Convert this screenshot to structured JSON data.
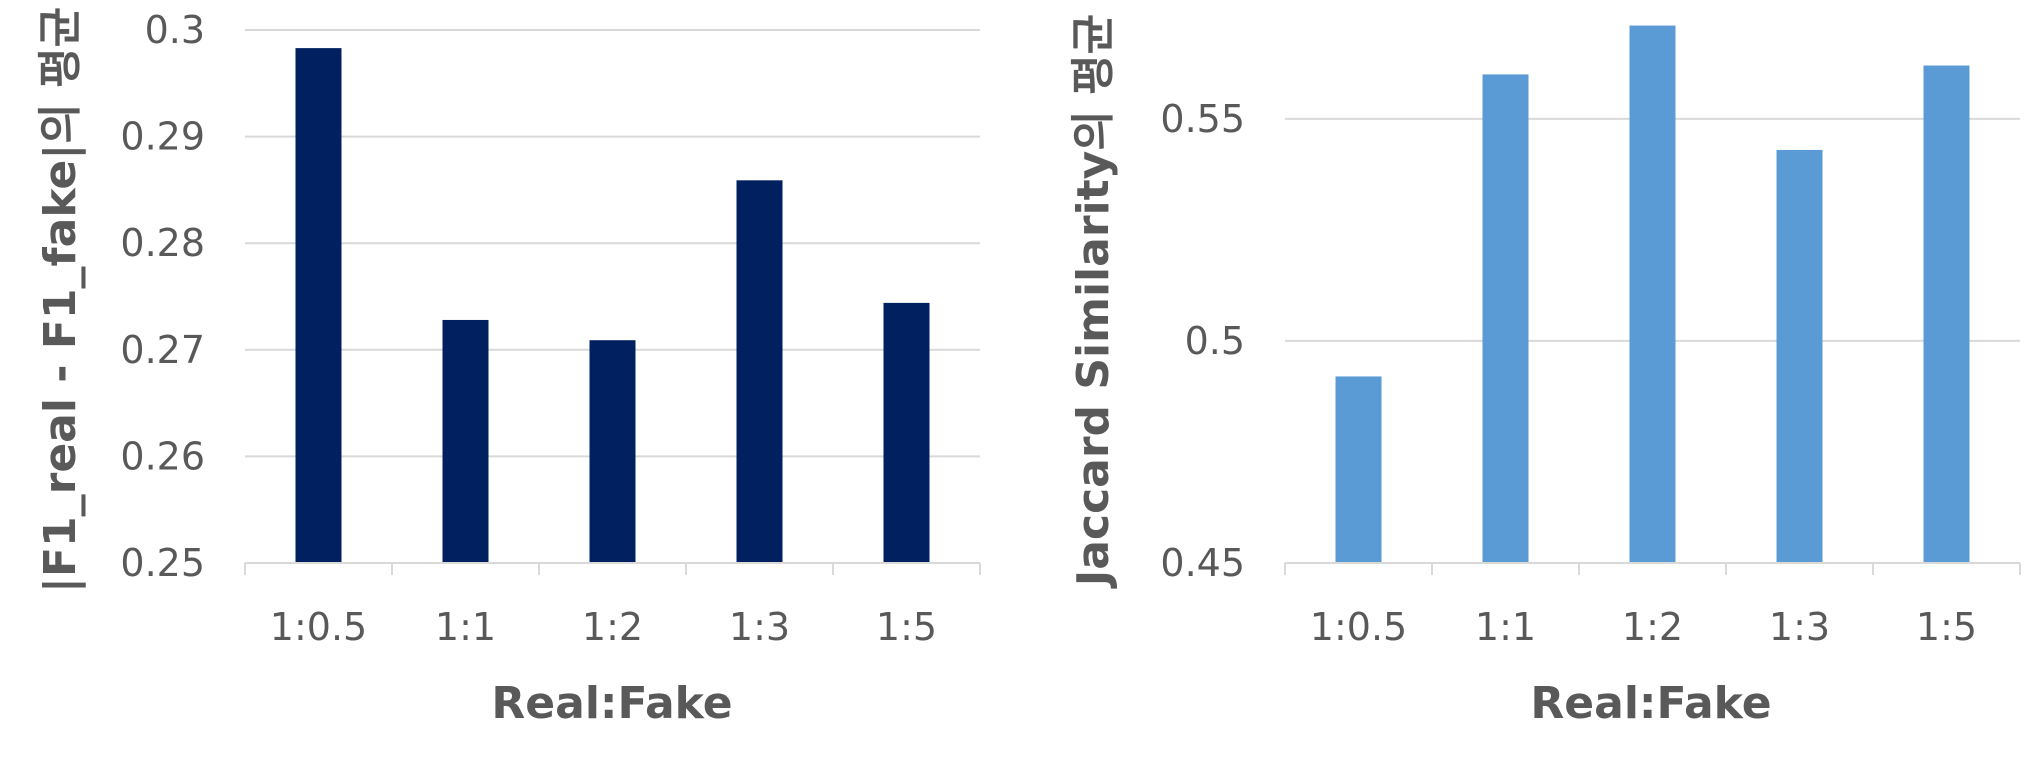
{
  "chart_data": [
    {
      "type": "bar",
      "categories": [
        "1:0.5",
        "1:1",
        "1:2",
        "1:3",
        "1:5"
      ],
      "values": [
        0.2983,
        0.2728,
        0.2709,
        0.2859,
        0.2744
      ],
      "ylim": [
        0.25,
        0.3
      ],
      "yticks": [
        "0.25",
        "0.26",
        "0.27",
        "0.28",
        "0.29",
        "0.3"
      ],
      "xlabel": "Real:Fake",
      "ylabel": "|F1_real - F1_fake|의 평균",
      "color": "#002060",
      "grid": true
    },
    {
      "type": "bar",
      "categories": [
        "1:0.5",
        "1:1",
        "1:2",
        "1:3",
        "1:5"
      ],
      "values": [
        0.492,
        0.56,
        0.571,
        0.543,
        0.562
      ],
      "ylim": [
        0.45,
        0.57
      ],
      "yticks": [
        "0.45",
        "0.5",
        "0.55"
      ],
      "xlabel": "Real:Fake",
      "ylabel": "Jaccard Similarity의 평균",
      "color": "#5b9bd5",
      "grid": true
    }
  ]
}
